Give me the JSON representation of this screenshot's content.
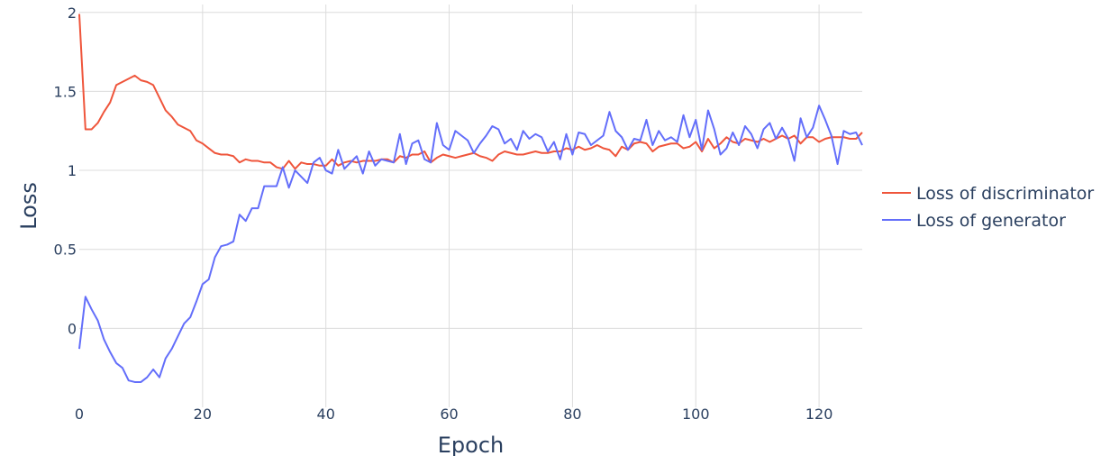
{
  "chart_data": {
    "type": "line",
    "xlabel": "Epoch",
    "ylabel": "Loss",
    "xlim": [
      0,
      127
    ],
    "ylim": [
      -0.5,
      2.05
    ],
    "x_ticks": [
      "0",
      "20",
      "40",
      "60",
      "80",
      "100",
      "120"
    ],
    "y_ticks": [
      "0",
      "0.5",
      "1",
      "1.5",
      "2"
    ],
    "grid": true,
    "legend_position": "right",
    "series": [
      {
        "name": "Loss of discriminator",
        "color": "#ef553b",
        "values": [
          1.99,
          1.26,
          1.26,
          1.3,
          1.37,
          1.43,
          1.54,
          1.56,
          1.58,
          1.6,
          1.57,
          1.56,
          1.54,
          1.46,
          1.38,
          1.34,
          1.29,
          1.27,
          1.25,
          1.19,
          1.17,
          1.14,
          1.11,
          1.1,
          1.1,
          1.09,
          1.05,
          1.07,
          1.06,
          1.06,
          1.05,
          1.05,
          1.02,
          1.01,
          1.06,
          1.01,
          1.05,
          1.04,
          1.04,
          1.03,
          1.03,
          1.07,
          1.03,
          1.05,
          1.06,
          1.05,
          1.06,
          1.06,
          1.06,
          1.07,
          1.07,
          1.05,
          1.09,
          1.08,
          1.1,
          1.1,
          1.12,
          1.05,
          1.08,
          1.1,
          1.09,
          1.08,
          1.09,
          1.1,
          1.11,
          1.09,
          1.08,
          1.06,
          1.1,
          1.12,
          1.11,
          1.1,
          1.1,
          1.11,
          1.12,
          1.11,
          1.11,
          1.12,
          1.12,
          1.14,
          1.13,
          1.15,
          1.13,
          1.14,
          1.16,
          1.14,
          1.13,
          1.09,
          1.15,
          1.13,
          1.17,
          1.18,
          1.17,
          1.12,
          1.15,
          1.16,
          1.17,
          1.17,
          1.14,
          1.15,
          1.18,
          1.12,
          1.2,
          1.14,
          1.17,
          1.21,
          1.18,
          1.17,
          1.2,
          1.19,
          1.18,
          1.2,
          1.18,
          1.2,
          1.22,
          1.2,
          1.22,
          1.17,
          1.21,
          1.21,
          1.18,
          1.2,
          1.21,
          1.21,
          1.21,
          1.2,
          1.2,
          1.24
        ]
      },
      {
        "name": "Loss of generator",
        "color": "#636efa",
        "values": [
          -0.13,
          0.2,
          0.12,
          0.05,
          -0.07,
          -0.15,
          -0.22,
          -0.25,
          -0.33,
          -0.34,
          -0.34,
          -0.31,
          -0.26,
          -0.31,
          -0.19,
          -0.13,
          -0.05,
          0.03,
          0.07,
          0.17,
          0.28,
          0.31,
          0.45,
          0.52,
          0.53,
          0.55,
          0.72,
          0.68,
          0.76,
          0.76,
          0.9,
          0.9,
          0.9,
          1.02,
          0.89,
          1.0,
          0.96,
          0.92,
          1.05,
          1.08,
          1.0,
          0.98,
          1.13,
          1.01,
          1.05,
          1.09,
          0.98,
          1.12,
          1.03,
          1.07,
          1.06,
          1.05,
          1.23,
          1.04,
          1.17,
          1.19,
          1.07,
          1.05,
          1.3,
          1.16,
          1.13,
          1.25,
          1.22,
          1.19,
          1.11,
          1.17,
          1.22,
          1.28,
          1.26,
          1.17,
          1.2,
          1.13,
          1.25,
          1.2,
          1.23,
          1.21,
          1.12,
          1.18,
          1.07,
          1.23,
          1.1,
          1.24,
          1.23,
          1.16,
          1.19,
          1.22,
          1.37,
          1.25,
          1.21,
          1.13,
          1.2,
          1.19,
          1.32,
          1.16,
          1.25,
          1.19,
          1.21,
          1.18,
          1.35,
          1.21,
          1.32,
          1.13,
          1.38,
          1.26,
          1.1,
          1.14,
          1.24,
          1.16,
          1.28,
          1.23,
          1.14,
          1.26,
          1.3,
          1.2,
          1.27,
          1.2,
          1.06,
          1.33,
          1.21,
          1.27,
          1.41,
          1.32,
          1.22,
          1.04,
          1.25,
          1.23,
          1.24,
          1.16
        ]
      }
    ]
  }
}
